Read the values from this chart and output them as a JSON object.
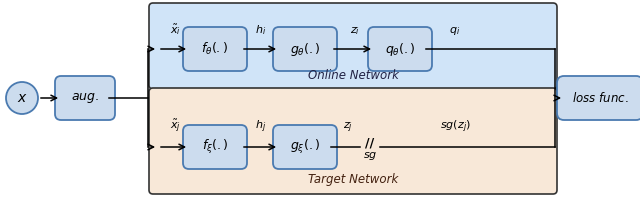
{
  "fig_width": 6.4,
  "fig_height": 1.97,
  "dpi": 100,
  "bg_color": "#ffffff",
  "online_bg": "#d0e4f8",
  "target_bg": "#f8e8d8",
  "box_face": "#ccdcee",
  "box_edge": "#4a7ab0",
  "loss_face": "#ccdcee",
  "loss_edge": "#4a7ab0",
  "ellipse_face": "#ccdcee",
  "ellipse_edge": "#4a7ab0",
  "panel_edge": "#333333",
  "online_label": "Online Network",
  "target_label": "Target Network",
  "online_boxes": [
    "$f_{\\theta}(.)$",
    "$g_{\\theta}(.)$",
    "$q_{\\theta}(.)$"
  ],
  "target_boxes": [
    "$f_{\\xi}(.)$",
    "$g_{\\xi}(.)$"
  ],
  "online_arrow_labels": [
    "$\\tilde{x}_i$",
    "$h_i$",
    "$z_i$",
    "$q_i$"
  ],
  "target_arrow_labels": [
    "$\\tilde{x}_j$",
    "$h_j$",
    "$z_j$",
    "$sg(z_j)$"
  ],
  "sg_label": "$sg$",
  "x_label": "$x$",
  "aug_label": "$aug.$",
  "loss_label": "$loss\\ func.$"
}
